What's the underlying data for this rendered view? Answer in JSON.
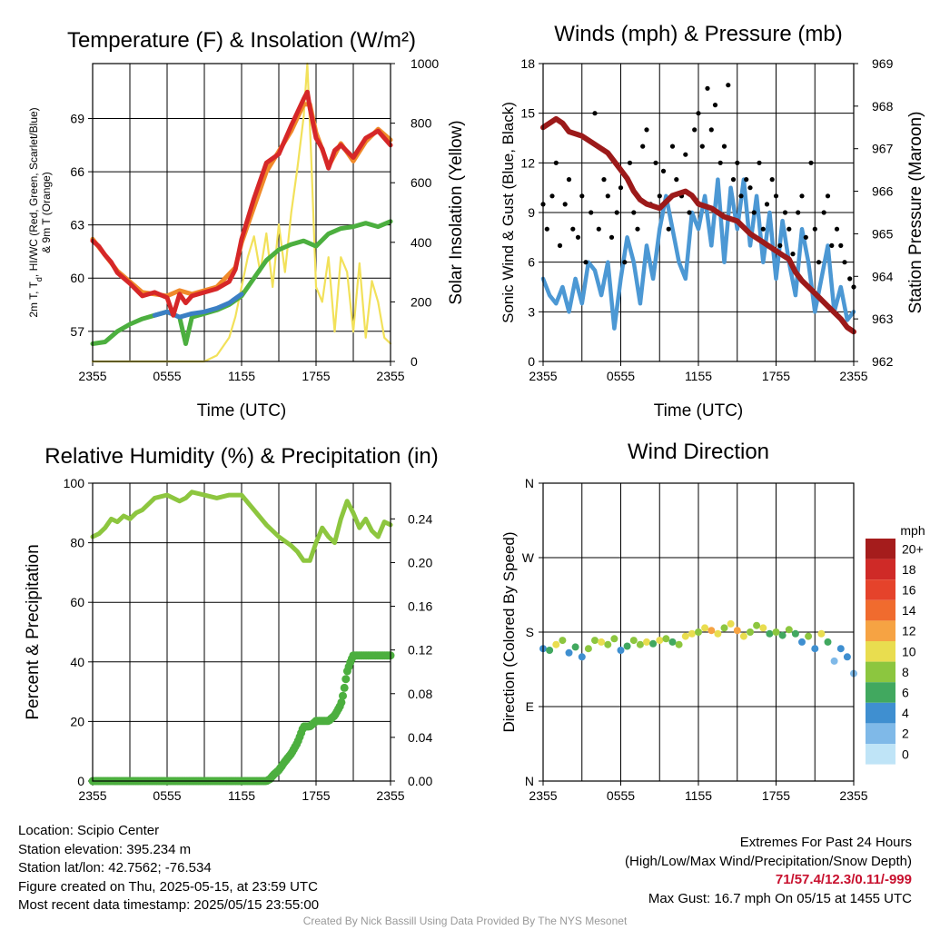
{
  "chart_data": [
    {
      "type": "line",
      "title": "Temperature (F) & Insolation (W/m²)",
      "xlabel": "Time (UTC)",
      "ylabel": "2m T, Td, HI/WC (Red, Green, Scarlet/Blue) & 9m T (Orange)",
      "ylabel_main": "2m T, T",
      "ylabel_sub": "d",
      "ylabel_tail": ", HI/WC (Red, Green, Scarlet/Blue)",
      "ylabel_line2": "& 9m T (Orange)",
      "y2label": "Solar Insolation (Yellow)",
      "x_ticks": [
        "2355",
        "0555",
        "1155",
        "1755",
        "2355"
      ],
      "y_ticks": [
        "57",
        "60",
        "63",
        "66",
        "69"
      ],
      "y2_ticks": [
        "0",
        "200",
        "400",
        "600",
        "800",
        "1000"
      ],
      "ylim": [
        55.3,
        72.1
      ],
      "y2lim": [
        0,
        1000
      ],
      "grid": true,
      "series": [
        {
          "name": "2m T",
          "color": "#d62728",
          "axis": "left",
          "x": [
            0,
            0.5,
            1,
            1.5,
            2,
            3,
            4,
            5,
            6,
            6.5,
            7,
            7.5,
            8,
            9,
            10,
            11,
            11.5,
            12,
            13,
            14,
            15,
            16,
            17,
            17.3,
            17.5,
            18,
            18.5,
            19,
            19.5,
            20,
            21,
            22,
            23,
            24
          ],
          "y": [
            62.1,
            61.8,
            61.3,
            60.9,
            60.3,
            59.7,
            59.0,
            59.2,
            58.9,
            57.9,
            59.1,
            58.6,
            59.0,
            59.2,
            59.4,
            59.8,
            60.5,
            62.2,
            64.5,
            66.5,
            67.0,
            68.6,
            70.1,
            70.5,
            69.6,
            67.9,
            67.3,
            66.2,
            67.2,
            67.5,
            66.8,
            67.9,
            68.3,
            67.5
          ]
        },
        {
          "name": "9m T",
          "color": "#f08a2a",
          "axis": "left",
          "x": [
            0,
            2,
            4,
            6,
            7,
            8,
            10,
            11.5,
            12,
            14,
            16,
            17,
            17.5,
            18,
            19,
            20,
            21,
            22,
            23,
            24
          ],
          "y": [
            62.2,
            60.4,
            59.2,
            59.0,
            59.3,
            59.1,
            59.5,
            60.6,
            62.0,
            66.0,
            68.3,
            69.8,
            69.8,
            68.2,
            66.3,
            67.6,
            66.6,
            67.7,
            68.4,
            67.8
          ]
        },
        {
          "name": "Td",
          "color": "#4caf3f",
          "axis": "left",
          "x": [
            0,
            1,
            2,
            2.5,
            3,
            4,
            5,
            6,
            7,
            7.5,
            8,
            9,
            10,
            11,
            12,
            13,
            14,
            15,
            16,
            17,
            18,
            19,
            20,
            21,
            22,
            23,
            24
          ],
          "y": [
            56.3,
            56.4,
            57.0,
            57.2,
            57.4,
            57.7,
            57.9,
            58.1,
            57.8,
            56.3,
            57.8,
            58.0,
            58.2,
            58.5,
            59.0,
            60.0,
            61.0,
            61.6,
            61.9,
            62.1,
            61.8,
            62.5,
            62.8,
            62.9,
            63.1,
            62.9,
            63.2
          ]
        },
        {
          "name": "HI/WC",
          "color": "#3b7fc4",
          "axis": "left",
          "x": [
            5,
            6,
            7,
            8,
            9,
            10,
            11,
            12
          ],
          "y": [
            57.9,
            58.1,
            57.8,
            58.0,
            58.1,
            58.3,
            58.6,
            59.1
          ]
        },
        {
          "name": "Insolation",
          "color": "#f2e15a",
          "axis": "right",
          "x": [
            0,
            2,
            4,
            6,
            8,
            9,
            10,
            11,
            11.5,
            12,
            12.5,
            13,
            13.5,
            14,
            14.5,
            15,
            15.5,
            16,
            16.5,
            17,
            17.3,
            17.6,
            18,
            18.5,
            19,
            19.5,
            20,
            20.5,
            21,
            21.5,
            22,
            22.5,
            23,
            23.5,
            24
          ],
          "y": [
            0,
            0,
            0,
            0,
            0,
            0,
            20,
            80,
            150,
            250,
            350,
            420,
            300,
            430,
            250,
            460,
            300,
            500,
            650,
            820,
            1000,
            700,
            250,
            200,
            350,
            100,
            350,
            300,
            100,
            330,
            80,
            270,
            200,
            80,
            60
          ]
        }
      ]
    },
    {
      "type": "line",
      "title": "Winds (mph) & Pressure (mb)",
      "xlabel": "Time (UTC)",
      "ylabel": "Sonic Wind & Gust (Blue, Black)",
      "y2label": "Station Pressure (Maroon)",
      "x_ticks": [
        "2355",
        "0555",
        "1155",
        "1755",
        "2355"
      ],
      "y_ticks": [
        "0",
        "3",
        "6",
        "9",
        "12",
        "15",
        "18"
      ],
      "y2_ticks": [
        "962",
        "963",
        "964",
        "965",
        "966",
        "967",
        "968",
        "969"
      ],
      "ylim": [
        0,
        18
      ],
      "y2lim": [
        962,
        969
      ],
      "grid": true,
      "series": [
        {
          "name": "Wind",
          "color": "#4c98d4",
          "axis": "left",
          "x": [
            0,
            0.5,
            1,
            1.5,
            2,
            2.5,
            3,
            3.5,
            4,
            4.5,
            5,
            5.5,
            6,
            6.5,
            7,
            7.5,
            8,
            8.5,
            9,
            9.5,
            10,
            10.5,
            11,
            11.5,
            12,
            12.5,
            13,
            13.5,
            14,
            14.5,
            15,
            15.5,
            16,
            16.5,
            17,
            17.5,
            18,
            18.5,
            19,
            19.5,
            20,
            20.5,
            21,
            21.5,
            22,
            22.5,
            23,
            23.5,
            24
          ],
          "y": [
            5,
            4,
            3.5,
            4.5,
            3,
            5,
            3.5,
            6,
            5.5,
            4,
            6,
            2,
            5,
            7.5,
            6,
            3.5,
            7,
            5,
            8,
            10,
            8,
            6,
            5,
            9,
            8,
            10,
            7,
            11,
            6,
            10.5,
            8,
            11,
            7,
            10,
            6,
            9,
            5,
            8.5,
            6,
            4,
            8,
            6,
            3,
            5,
            7,
            3,
            4.5,
            2.5,
            3
          ]
        },
        {
          "name": "Gust",
          "color": "#000000",
          "axis": "left",
          "x": [
            0,
            0.3,
            0.7,
            1,
            1.3,
            1.7,
            2,
            2.3,
            2.7,
            3,
            3.3,
            3.7,
            4,
            4.3,
            4.7,
            5,
            5.3,
            5.7,
            6,
            6.3,
            6.7,
            7,
            7.3,
            7.7,
            8,
            8.3,
            8.7,
            9,
            9.3,
            9.7,
            10,
            10.3,
            10.7,
            11,
            11.3,
            11.7,
            12,
            12.3,
            12.7,
            13,
            13.3,
            13.7,
            14,
            14.3,
            14.7,
            15,
            15.3,
            15.7,
            16,
            16.3,
            16.7,
            17,
            17.3,
            17.7,
            18,
            18.3,
            18.7,
            19,
            19.3,
            19.7,
            20,
            20.3,
            20.7,
            21,
            21.3,
            21.7,
            22,
            22.3,
            22.7,
            23,
            23.3,
            23.7,
            24
          ],
          "y": [
            9.5,
            8,
            10,
            12,
            7,
            9.5,
            11,
            8,
            7.5,
            10,
            6,
            9,
            15,
            8,
            11,
            10,
            7.5,
            9,
            10.5,
            6,
            12,
            9,
            8,
            13,
            14,
            9.5,
            12,
            10,
            11.5,
            8,
            13,
            11,
            10,
            12.5,
            9,
            14,
            15,
            13,
            16.5,
            14,
            15.5,
            12,
            13,
            16.7,
            11,
            12,
            10,
            11,
            10.5,
            9,
            12,
            8,
            9.5,
            11,
            10,
            7,
            9,
            8,
            6.5,
            9,
            10,
            7.5,
            12,
            8,
            6,
            9,
            10,
            7,
            8,
            7,
            6,
            5,
            4.5
          ]
        },
        {
          "name": "Pressure",
          "color": "#9c1a1a",
          "axis": "right",
          "x": [
            0,
            0.5,
            1,
            1.5,
            2,
            3,
            4,
            5,
            6,
            6.5,
            7,
            7.5,
            8,
            9,
            10,
            11,
            11.5,
            12,
            13,
            14,
            15,
            16,
            17,
            18,
            19,
            19.5,
            20,
            21,
            22,
            23,
            23.5,
            24
          ],
          "y": [
            967.5,
            967.6,
            967.7,
            967.6,
            967.4,
            967.3,
            967.1,
            966.9,
            966.5,
            966.3,
            966.0,
            965.8,
            965.7,
            965.6,
            965.9,
            966.0,
            965.9,
            965.7,
            965.6,
            965.4,
            965.3,
            965.0,
            964.8,
            964.6,
            964.4,
            964.1,
            963.9,
            963.6,
            963.3,
            963.0,
            962.8,
            962.7
          ]
        }
      ]
    },
    {
      "type": "line",
      "title": "Relative Humidity (%) & Precipitation (in)",
      "xlabel": "",
      "ylabel": "Percent & Precipitation",
      "x_ticks": [
        "2355",
        "0555",
        "1155",
        "1755",
        "2355"
      ],
      "y_ticks": [
        "0",
        "20",
        "40",
        "60",
        "80",
        "100"
      ],
      "y2_ticks": [
        "0.00",
        "0.04",
        "0.08",
        "0.12",
        "0.16",
        "0.20",
        "0.24"
      ],
      "ylim": [
        0,
        100
      ],
      "y2lim": [
        0,
        0.2727
      ],
      "grid": true,
      "series": [
        {
          "name": "Relative Humidity",
          "color": "#8dc63f",
          "axis": "left",
          "x": [
            0,
            0.5,
            1,
            1.5,
            2,
            2.5,
            3,
            3.5,
            4,
            4.5,
            5,
            6,
            7,
            7.5,
            8,
            9,
            10,
            11,
            12,
            13,
            14,
            15,
            16,
            16.5,
            17,
            17.5,
            18,
            18.5,
            19,
            19.5,
            20,
            20.5,
            21,
            21.5,
            22,
            22.5,
            23,
            23.5,
            24
          ],
          "y": [
            82,
            83,
            85,
            88,
            87,
            89,
            88,
            90,
            91,
            93,
            95,
            96,
            94,
            95,
            97,
            96,
            95,
            96,
            96,
            91,
            86,
            82,
            79,
            77,
            74,
            74,
            80,
            85,
            82,
            80,
            88,
            94,
            90,
            85,
            88,
            84,
            82,
            87,
            86
          ]
        },
        {
          "name": "Precipitation",
          "color": "#4caf3f",
          "axis": "right",
          "x": [
            0,
            14,
            14.3,
            14.6,
            15,
            15.5,
            16,
            16.5,
            17,
            17.5,
            18,
            18.5,
            19,
            19.5,
            20,
            20.2,
            20.5,
            20.8,
            21,
            21.5,
            22,
            24
          ],
          "y": [
            0,
            0,
            0.002,
            0.006,
            0.01,
            0.018,
            0.025,
            0.035,
            0.05,
            0.05,
            0.055,
            0.055,
            0.055,
            0.06,
            0.07,
            0.08,
            0.1,
            0.11,
            0.115,
            0.115,
            0.115,
            0.115
          ]
        }
      ]
    },
    {
      "type": "scatter",
      "title": "Wind Direction",
      "ylabel": "Direction (Colored By Speed)",
      "x_ticks": [
        "2355",
        "0555",
        "1155",
        "1755",
        "2355"
      ],
      "y_ticks": [
        "N",
        "E",
        "S",
        "W",
        "N"
      ],
      "ylim": [
        0,
        360
      ],
      "grid": true,
      "legend": {
        "title": "mph",
        "labels": [
          "20+",
          "18",
          "16",
          "14",
          "12",
          "10",
          "8",
          "6",
          "4",
          "2",
          "0"
        ],
        "colors": [
          "#a51c1c",
          "#cf2a27",
          "#e5432b",
          "#f06b2e",
          "#f6a343",
          "#e9dd4f",
          "#8cc63f",
          "#41a85f",
          "#3f8fd0",
          "#7fb9e8",
          "#bfe4f7"
        ]
      },
      "x": [
        0,
        0.5,
        1,
        1.5,
        2,
        2.5,
        3,
        3.5,
        4,
        4.5,
        5,
        5.5,
        6,
        6.5,
        7,
        7.5,
        8,
        8.5,
        9,
        9.5,
        10,
        10.5,
        11,
        11.5,
        12,
        12.5,
        13,
        13.5,
        14,
        14.5,
        15,
        15.5,
        16,
        16.5,
        17,
        17.5,
        18,
        18.5,
        19,
        19.5,
        20,
        20.5,
        21,
        21.5,
        22,
        22.5,
        23,
        23.5,
        24
      ],
      "values": [
        160,
        158,
        165,
        170,
        155,
        162,
        150,
        160,
        170,
        168,
        165,
        172,
        158,
        163,
        170,
        165,
        168,
        166,
        170,
        172,
        168,
        165,
        175,
        178,
        180,
        185,
        182,
        178,
        185,
        190,
        182,
        175,
        180,
        188,
        185,
        178,
        180,
        176,
        183,
        178,
        168,
        175,
        160,
        178,
        168,
        145,
        160,
        150,
        130
      ],
      "speeds": [
        4,
        5,
        9,
        8,
        3,
        6,
        4,
        7,
        8,
        9,
        7,
        8,
        4,
        5,
        8,
        7,
        9,
        6,
        10,
        8,
        5,
        7,
        9,
        10,
        8,
        10,
        11,
        9,
        8,
        10,
        12,
        9,
        8,
        7,
        9,
        6,
        7,
        5,
        8,
        6,
        4,
        7,
        3,
        9,
        5,
        2,
        4,
        3,
        2
      ]
    }
  ],
  "info_left": {
    "location": "Location: Scipio Center",
    "elevation": "Station elevation: 395.234 m",
    "latlon": "Station lat/lon: 42.7562; -76.534",
    "created": "Figure created on Thu, 2025-05-15, at 23:59 UTC",
    "recent": "Most recent data timestamp: 2025/05/15 23:55:00"
  },
  "info_right": {
    "heading": "Extremes For Past 24 Hours",
    "subheading": "(High/Low/Max Wind/Precipitation/Snow Depth)",
    "extremes": "71/57.4/12.3/0.11/-999",
    "max_gust": "Max Gust: 16.7 mph On 05/15 at 1455 UTC"
  },
  "credit": "Created By Nick Bassill Using Data Provided By The NYS Mesonet"
}
